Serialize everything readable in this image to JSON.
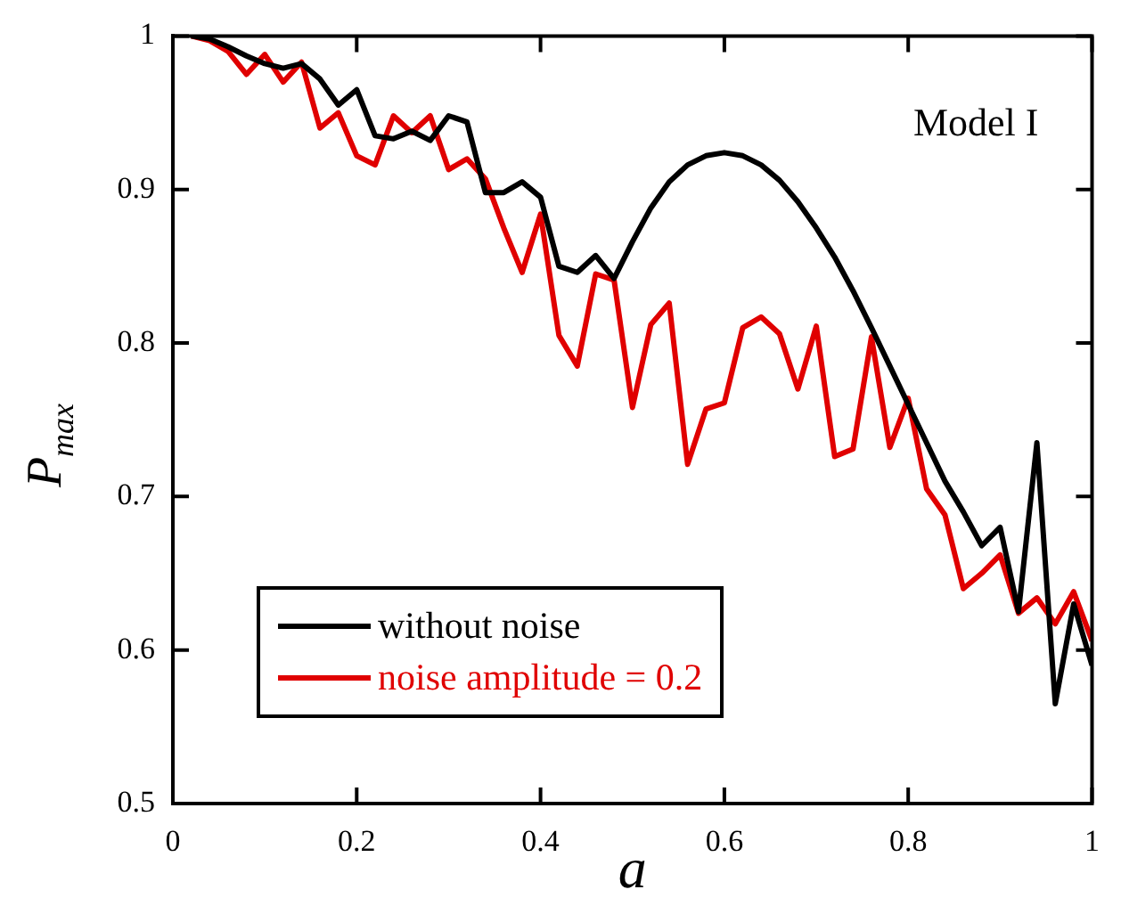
{
  "chart_data": {
    "type": "line",
    "xlabel": "a",
    "ylabel": "P$_{max}$",
    "annotations": [
      "Model I"
    ],
    "x": [
      0.02,
      0.04,
      0.06,
      0.08,
      0.1,
      0.12,
      0.14,
      0.16,
      0.18,
      0.2,
      0.22,
      0.24,
      0.26,
      0.28,
      0.3,
      0.32,
      0.34,
      0.36,
      0.38,
      0.4,
      0.42,
      0.44,
      0.46,
      0.48,
      0.5,
      0.52,
      0.54,
      0.56,
      0.58,
      0.6,
      0.62,
      0.64,
      0.66,
      0.68,
      0.7,
      0.72,
      0.74,
      0.76,
      0.78,
      0.8,
      0.82,
      0.84,
      0.86,
      0.88,
      0.9,
      0.92,
      0.94,
      0.96,
      0.98,
      1.0
    ],
    "series": [
      {
        "name": "without noise",
        "color": "#000000",
        "values": [
          1.0,
          0.998,
          0.993,
          0.987,
          0.982,
          0.979,
          0.982,
          0.972,
          0.955,
          0.965,
          0.935,
          0.933,
          0.938,
          0.932,
          0.948,
          0.944,
          0.898,
          0.898,
          0.905,
          0.895,
          0.85,
          0.846,
          0.857,
          0.842,
          0.866,
          0.888,
          0.905,
          0.916,
          0.922,
          0.924,
          0.922,
          0.916,
          0.906,
          0.892,
          0.875,
          0.856,
          0.834,
          0.81,
          0.785,
          0.76,
          0.735,
          0.71,
          0.69,
          0.668,
          0.68,
          0.625,
          0.735,
          0.565,
          0.63,
          0.59
        ]
      },
      {
        "name": "noise amplitude = 0.2",
        "color": "#e00000",
        "values": [
          1.0,
          0.997,
          0.99,
          0.975,
          0.988,
          0.97,
          0.983,
          0.94,
          0.95,
          0.922,
          0.916,
          0.948,
          0.937,
          0.948,
          0.913,
          0.92,
          0.907,
          0.875,
          0.846,
          0.884,
          0.805,
          0.785,
          0.845,
          0.841,
          0.758,
          0.812,
          0.826,
          0.721,
          0.757,
          0.761,
          0.81,
          0.817,
          0.806,
          0.77,
          0.811,
          0.726,
          0.731,
          0.804,
          0.732,
          0.764,
          0.705,
          0.688,
          0.64,
          0.65,
          0.662,
          0.624,
          0.634,
          0.617,
          0.638,
          0.606
        ]
      }
    ],
    "xlim": [
      0,
      1
    ],
    "xticks": [
      0,
      0.2,
      0.4,
      0.6,
      0.8,
      1
    ],
    "ylim": [
      0.5,
      1
    ],
    "yticks": [
      0.5,
      0.6,
      0.7,
      0.8,
      0.9,
      1
    ],
    "grid": false,
    "legend": "bottom left",
    "marker": "none",
    "line_style": "solid"
  }
}
